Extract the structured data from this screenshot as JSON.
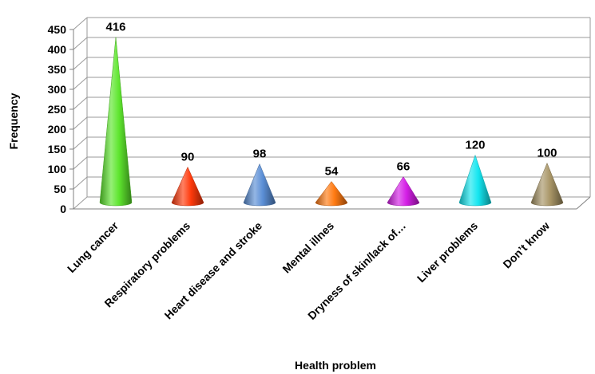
{
  "chart_data": {
    "type": "bar",
    "shape": "cone-3d",
    "categories": [
      "Lung cancer",
      "Respiratory problems",
      "Heart disease and stroke",
      "Mental illnes",
      "Dryness of skin/lack of…",
      "Liver problems",
      "Don’t know"
    ],
    "values": [
      416,
      90,
      98,
      54,
      66,
      120,
      100
    ],
    "colors": [
      "#5ee62e",
      "#ff3a0c",
      "#5b8fd6",
      "#ff7a12",
      "#d41ee6",
      "#14e6f0",
      "#a89566"
    ],
    "xlabel": "Health problem",
    "ylabel": "Frequency",
    "ylim": [
      0,
      450
    ],
    "yticks": [
      0,
      50,
      100,
      150,
      200,
      250,
      300,
      350,
      400,
      450
    ],
    "grid": true,
    "legend": "none",
    "data_labels": true
  }
}
